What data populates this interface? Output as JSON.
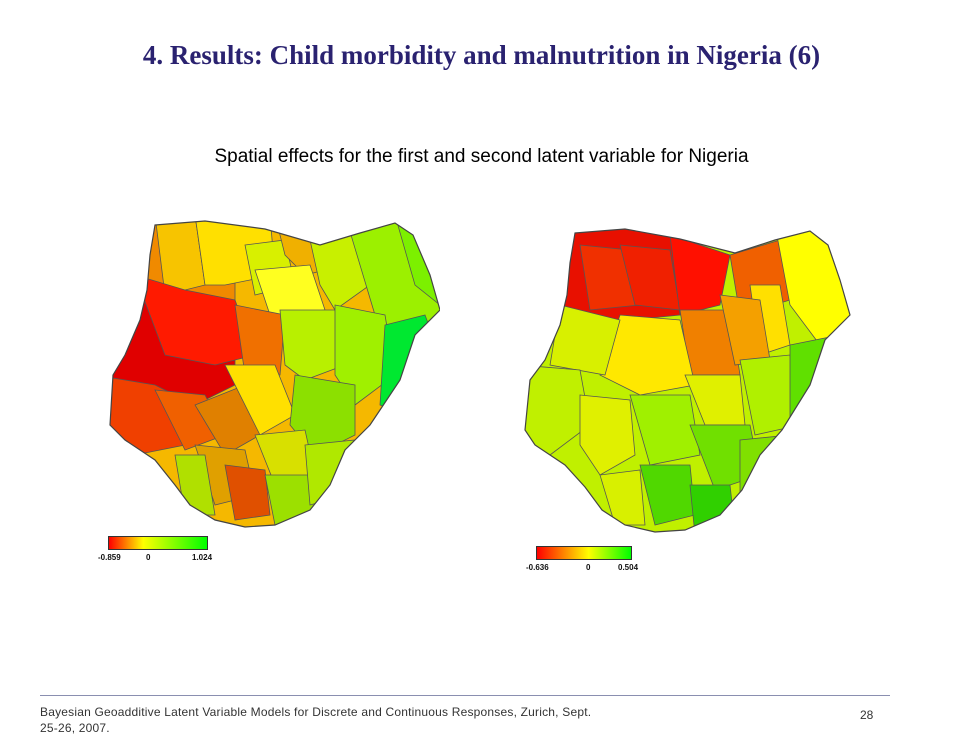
{
  "slide": {
    "title": "4. Results:  Child morbidity and malnutrition in Nigeria (6)",
    "subtitle": "Spatial effects for the first and second latent variable for Nigeria"
  },
  "maps": [
    {
      "legend": {
        "min": "-0.859",
        "mid": "0",
        "max": "1.024"
      },
      "colors": {
        "low": "#ff0000",
        "mid": "#ffff00",
        "high": "#00ff00"
      }
    },
    {
      "legend": {
        "min": "-0.636",
        "mid": "0",
        "max": "0.504"
      },
      "colors": {
        "low": "#ff0000",
        "mid": "#ffff00",
        "high": "#00ff00"
      }
    }
  ],
  "footer": {
    "text": "Bayesian Geoadditive Latent Variable Models for Discrete and Continuous Responses, Zurich, Sept. 25-26, 2007.",
    "page": "28"
  }
}
